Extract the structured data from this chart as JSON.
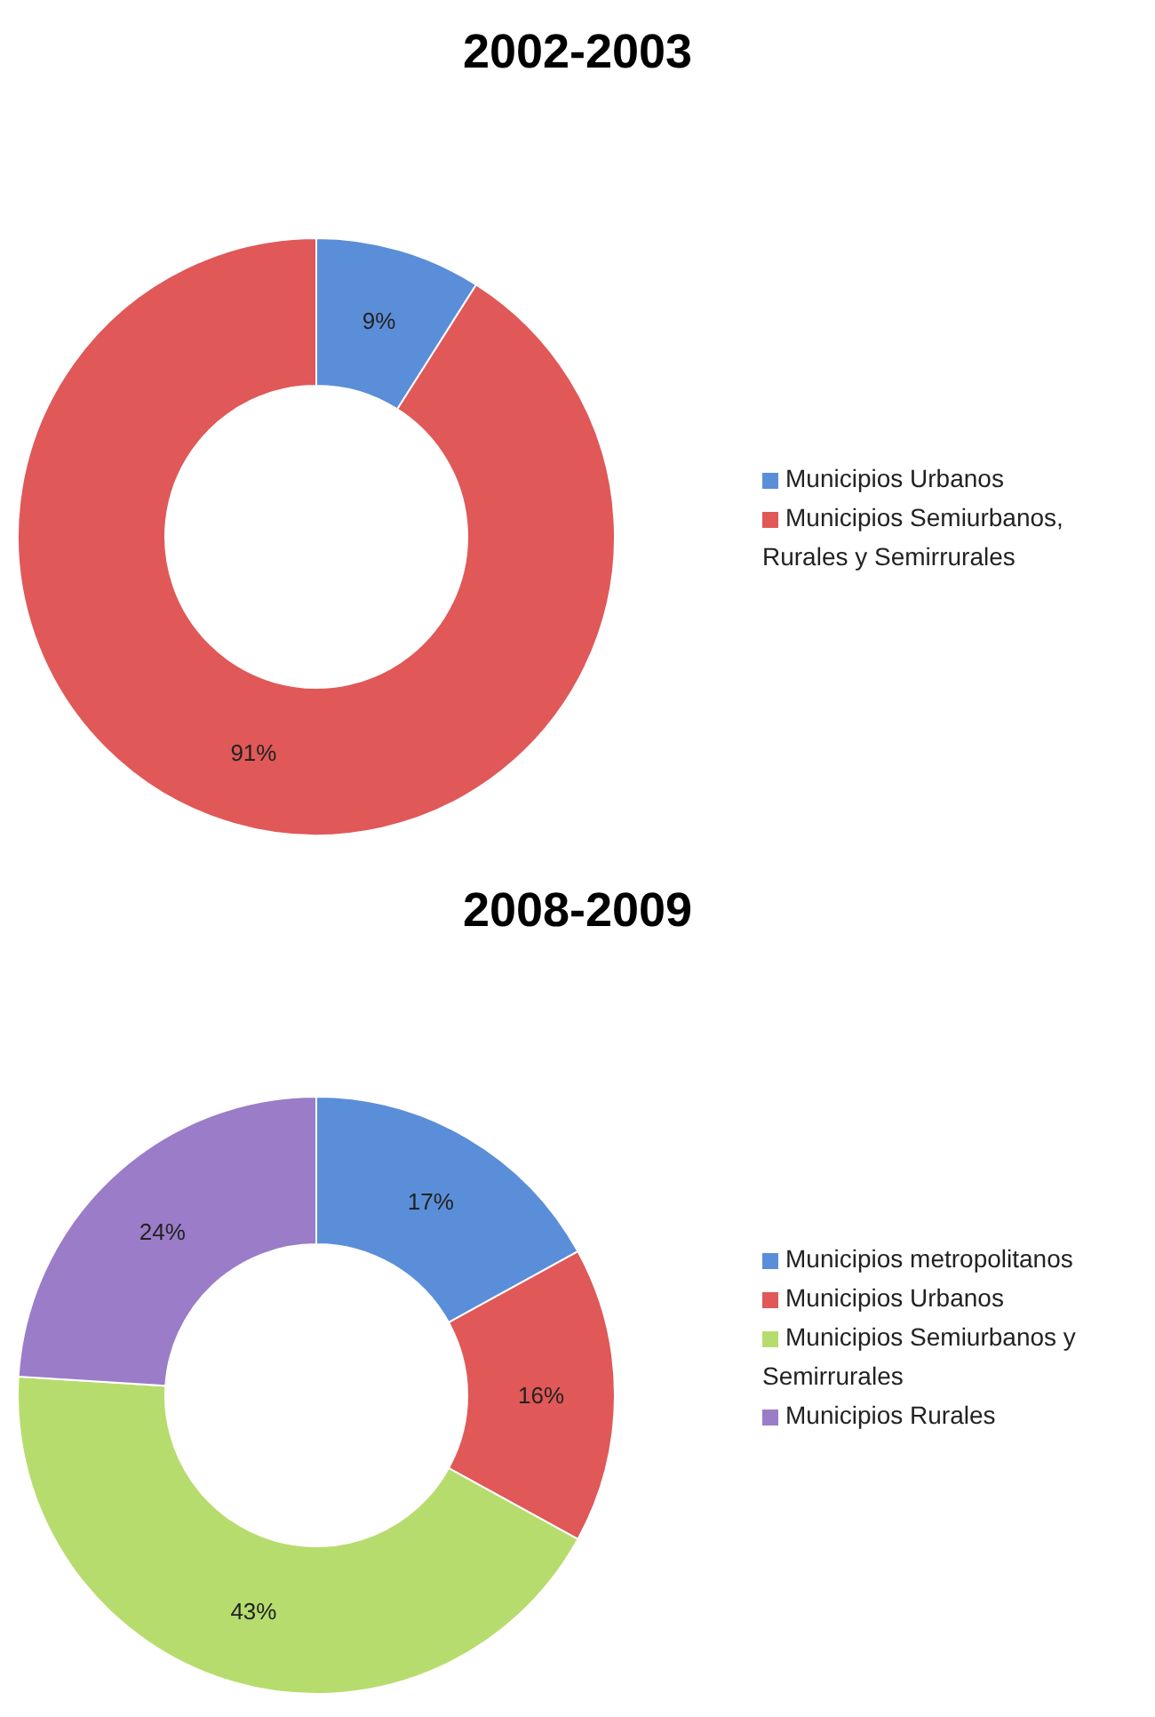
{
  "chart_data": [
    {
      "type": "donut",
      "title": "2002-2003",
      "categories": [
        "Municipios  Urbanos",
        "Municipios Semiurbanos, Rurales y Semirrurales"
      ],
      "values": [
        9,
        91
      ],
      "colors": [
        "#5b8ed8",
        "#e05858"
      ],
      "value_labels": [
        "9%",
        "91%"
      ],
      "legend": "right"
    },
    {
      "type": "donut",
      "title": "2008-2009",
      "categories": [
        "Municipios metropolitanos",
        "Municipios Urbanos",
        "Municipios Semiurbanos y Semirrurales",
        "Municipios Rurales"
      ],
      "values": [
        17,
        16,
        43,
        24
      ],
      "colors": [
        "#5b8ed8",
        "#e05858",
        "#b7dc6e",
        "#9b7cc8"
      ],
      "value_labels": [
        "17%",
        "16%",
        "43%",
        "24%"
      ],
      "legend": "right"
    }
  ]
}
